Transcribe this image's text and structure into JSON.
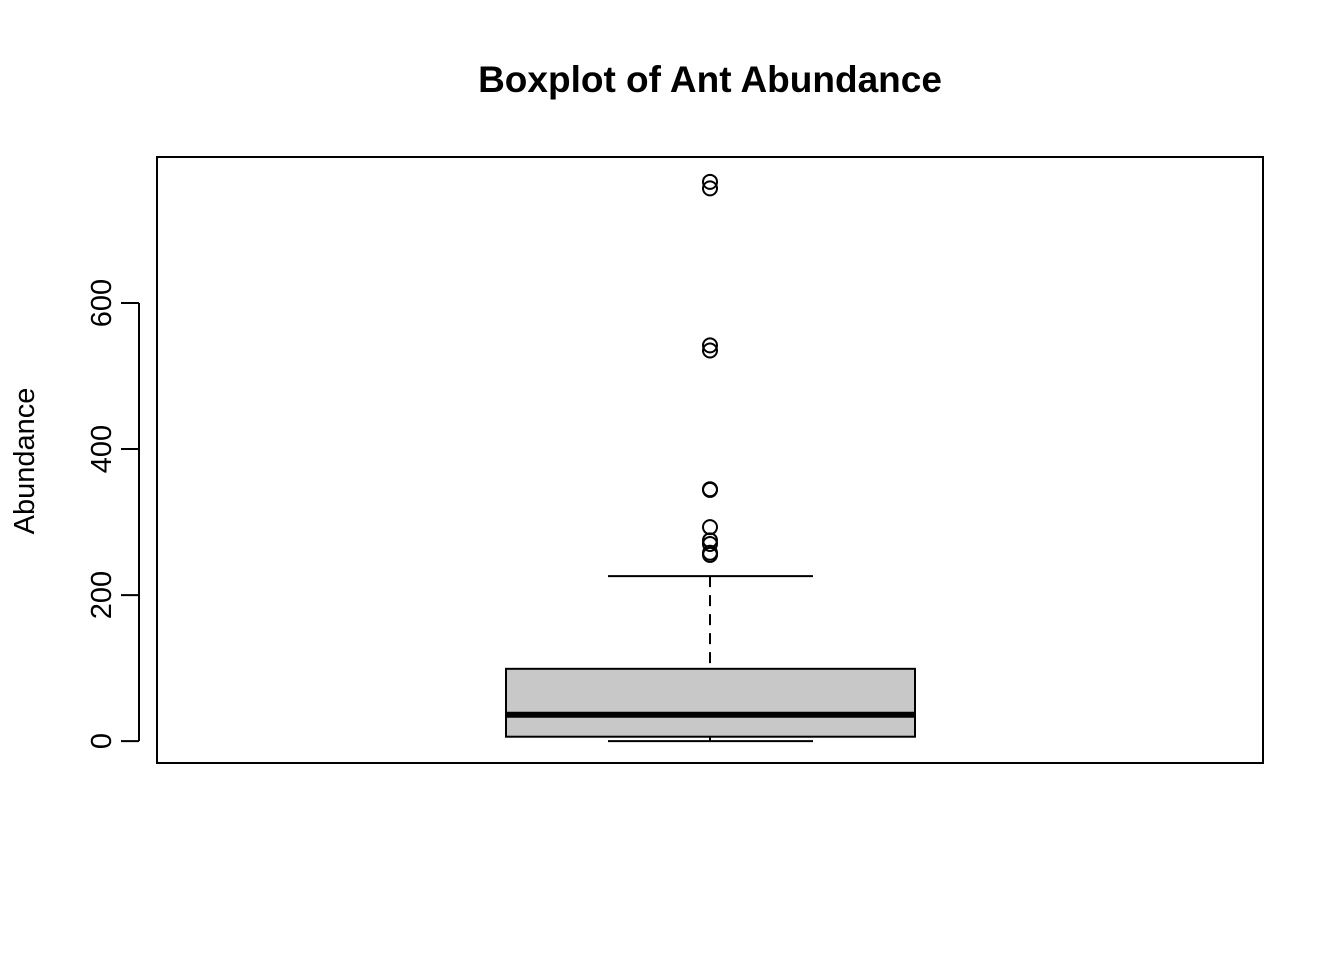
{
  "chart_data": {
    "type": "boxplot",
    "title": "Boxplot of Ant Abundance",
    "ylabel": "Abundance",
    "xlabel": "",
    "ylim": [
      -30,
      800
    ],
    "yticks": [
      0,
      200,
      400,
      600
    ],
    "ytick_labels": [
      "0",
      "200",
      "400",
      "600"
    ],
    "box": {
      "lower_whisker": 0,
      "q1": 6,
      "median": 36,
      "q3": 99,
      "upper_whisker": 226,
      "outliers": [
        255,
        258,
        270,
        275,
        293,
        344,
        345,
        535,
        542,
        757,
        766
      ]
    },
    "colors": {
      "box_fill": "#c8c8c8",
      "stroke": "#000000"
    }
  }
}
